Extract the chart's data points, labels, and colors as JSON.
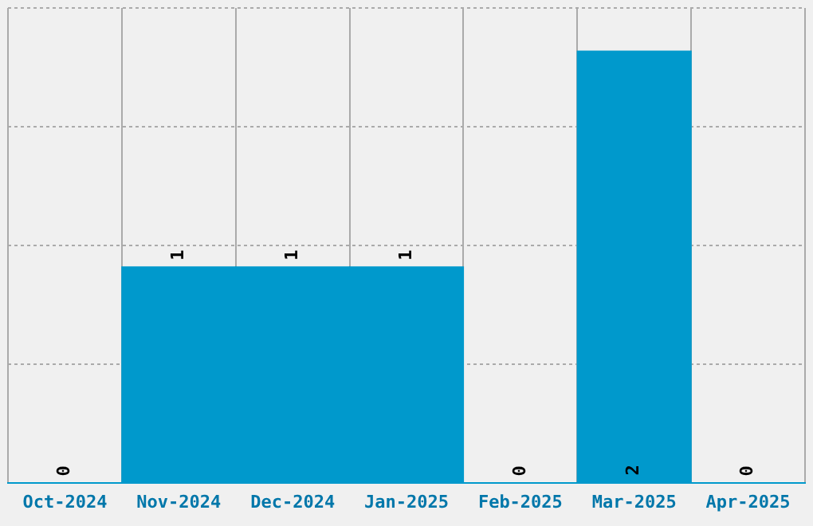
{
  "chart_data": {
    "type": "bar",
    "categories": [
      "Oct-2024",
      "Nov-2024",
      "Dec-2024",
      "Jan-2025",
      "Feb-2025",
      "Mar-2025",
      "Apr-2025"
    ],
    "values": [
      0,
      1,
      1,
      1,
      0,
      2,
      0
    ],
    "color": "#0099cc",
    "ylim": [
      0,
      2.2
    ],
    "yticks": [
      {
        "value": 0,
        "label": null
      },
      {
        "value": 0.55,
        "label": null
      },
      {
        "value": 1.1,
        "label": null
      },
      {
        "value": 1.65,
        "label": null
      },
      {
        "value": 2.2,
        "label": null
      }
    ],
    "grid": true,
    "tick_labels": "x",
    "data_labels": true
  }
}
